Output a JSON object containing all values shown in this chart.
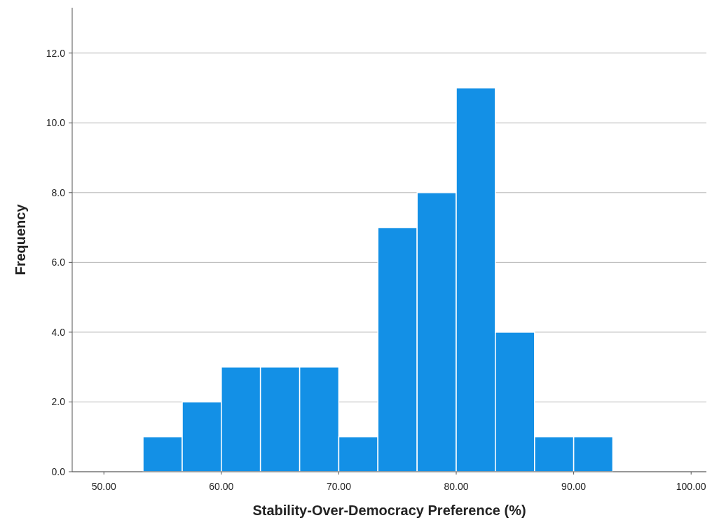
{
  "chart_data": {
    "type": "histogram",
    "xlabel": "Stability-Over-Democracy Preference (%)",
    "ylabel": "Frequency",
    "bins": [
      53.33,
      56.67,
      60,
      63.33,
      66.67,
      70,
      73.33,
      76.67,
      80,
      83.33,
      86.67,
      90,
      93.33
    ],
    "values": [
      1,
      2,
      3,
      3,
      3,
      1,
      7,
      8,
      11,
      4,
      1,
      1
    ],
    "color": "#1390e6",
    "xlim": [
      47.3,
      101.3
    ],
    "ylim": [
      0,
      13.3
    ],
    "xticks": [
      {
        "value": 50,
        "label": "50.00"
      },
      {
        "value": 60,
        "label": "60.00"
      },
      {
        "value": 70,
        "label": "70.00"
      },
      {
        "value": 80,
        "label": "80.00"
      },
      {
        "value": 90,
        "label": "90.00"
      },
      {
        "value": 100,
        "label": "100.00"
      }
    ],
    "yticks": [
      {
        "value": 0,
        "label": "0.0"
      },
      {
        "value": 2,
        "label": "2.0"
      },
      {
        "value": 4,
        "label": "4.0"
      },
      {
        "value": 6,
        "label": "6.0"
      },
      {
        "value": 8,
        "label": "8.0"
      },
      {
        "value": 10,
        "label": "10.0"
      },
      {
        "value": 12,
        "label": "12.0"
      }
    ],
    "grid": "y"
  }
}
